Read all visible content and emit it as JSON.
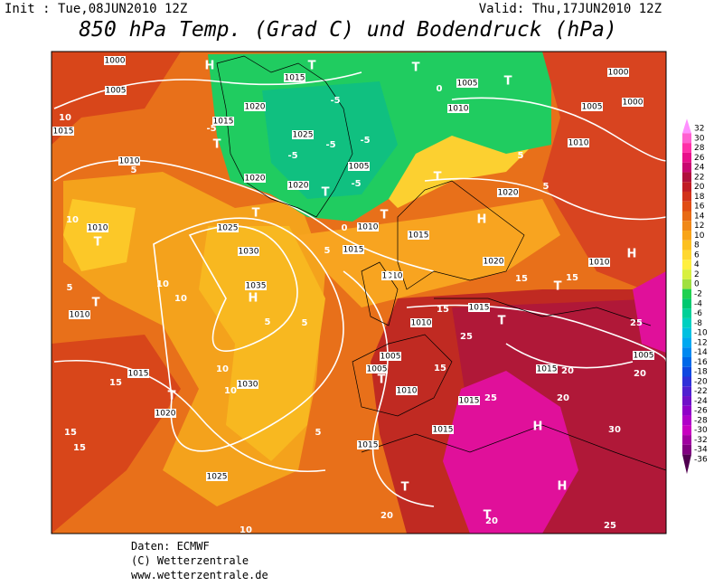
{
  "header": {
    "init": "Init : Tue,08JUN2010 12Z",
    "valid": "Valid: Thu,17JUN2010 12Z",
    "title": "850 hPa Temp. (Grad C) und Bodendruck (hPa)"
  },
  "map": {
    "isobar_labels": [
      "1000",
      "1005",
      "1015",
      "1010",
      "1010",
      "1010",
      "1015",
      "1020",
      "1015",
      "1025",
      "1020",
      "1020",
      "1025",
      "1030",
      "1035",
      "1030",
      "1015",
      "1020",
      "1025",
      "1005",
      "1010",
      "1015",
      "1010",
      "1015",
      "1010",
      "1015",
      "1005",
      "1005",
      "1010",
      "1015",
      "1015",
      "1015",
      "1015",
      "1005",
      "1010",
      "1020",
      "1020",
      "1010",
      "1005",
      "1000",
      "1000",
      "1005",
      "1010"
    ],
    "pressure_centers": [
      "H",
      "T",
      "T",
      "H",
      "T",
      "T",
      "T",
      "T",
      "T",
      "T",
      "T",
      "T",
      "T",
      "H",
      "H",
      "T",
      "H",
      "T",
      "H",
      "T",
      "H",
      "T",
      "T"
    ],
    "temperature_labels": [
      "10",
      "5",
      "10",
      "5",
      "10",
      "10",
      "5",
      "5",
      "10",
      "10",
      "15",
      "15",
      "15",
      "5",
      "15",
      "25",
      "15",
      "25",
      "30",
      "20",
      "20",
      "20",
      "25",
      "15",
      "15",
      "20",
      "20",
      "25",
      "10",
      "5",
      "5",
      "0",
      "-5",
      "-5",
      "-5",
      "-5",
      "-5",
      "-5",
      "0",
      "5"
    ]
  },
  "colorbar": {
    "levels": [
      32,
      30,
      28,
      26,
      24,
      22,
      20,
      18,
      16,
      14,
      12,
      10,
      8,
      6,
      4,
      2,
      0,
      -2,
      -4,
      -6,
      -8,
      -10,
      -12,
      -14,
      -16,
      -18,
      -20,
      -22,
      -24,
      -26,
      -28,
      -30,
      -32,
      -34,
      -36
    ],
    "colors": [
      "#ff90ff",
      "#ff60d0",
      "#ff30a8",
      "#e8108a",
      "#c80870",
      "#b0103c",
      "#c01c24",
      "#d2321a",
      "#e04c14",
      "#e86a14",
      "#f08818",
      "#f8a418",
      "#fcc020",
      "#ffd830",
      "#fff040",
      "#d8f040",
      "#a0e040",
      "#20d050",
      "#00c870",
      "#00d098",
      "#00d0c0",
      "#00c0e0",
      "#00a8f0",
      "#0088f0",
      "#0068e8",
      "#1048e0",
      "#3030d8",
      "#5020d0",
      "#7010c8",
      "#9000c8",
      "#b000c8",
      "#c800c0",
      "#a000a0",
      "#800080",
      "#500050"
    ]
  },
  "footer": {
    "source": "Daten: ECMWF",
    "copyright": "(C) Wetterzentrale",
    "website": "www.wetterzentrale.de"
  }
}
